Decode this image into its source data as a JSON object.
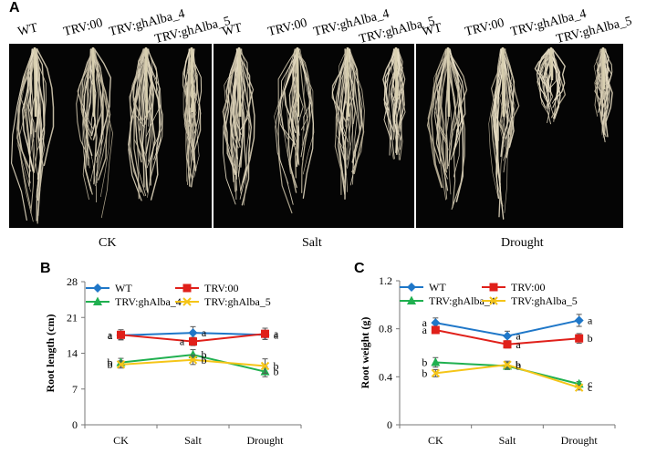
{
  "panel_a": {
    "letter": "A",
    "groups": [
      {
        "condition": "CK",
        "labels": [
          "WT",
          "TRV:00",
          "TRV:ghAlba_4",
          "TRV:ghAlba_5"
        ]
      },
      {
        "condition": "Salt",
        "labels": [
          "WT",
          "TRV:00",
          "TRV:ghAlba_4",
          "TRV:ghAlba_5"
        ]
      },
      {
        "condition": "Drought",
        "labels": [
          "WT",
          "TRV:00",
          "TRV:ghAlba_4",
          "TRV:ghAlba_5"
        ]
      }
    ]
  },
  "colors": {
    "WT": "#1f77c8",
    "TRV00": "#e0201a",
    "ghAlba4": "#20b050",
    "ghAlba5": "#f5c518"
  },
  "chart_data": [
    {
      "letter": "B",
      "type": "line",
      "ylabel": "Root length (cm)",
      "categories": [
        "CK",
        "Salt",
        "Drought"
      ],
      "ylim": [
        0,
        28
      ],
      "yticks": [
        "0",
        "7",
        "14",
        "21",
        "28"
      ],
      "legend": [
        "WT",
        "TRV:00",
        "TRV:ghAlba_4",
        "TRV:ghAlba_5"
      ],
      "series": [
        {
          "name": "WT",
          "marker": "diamond",
          "values": [
            17.5,
            18.0,
            17.6
          ],
          "err": [
            0.8,
            1.2,
            0.9
          ],
          "letters": [
            "a",
            "a",
            "a"
          ]
        },
        {
          "name": "TRV:00",
          "marker": "square",
          "values": [
            17.6,
            16.3,
            17.8
          ],
          "err": [
            1.0,
            0.8,
            1.1
          ],
          "letters": [
            "a",
            "a",
            "a"
          ]
        },
        {
          "name": "TRV:ghAlba_4",
          "marker": "triangle",
          "values": [
            12.2,
            13.7,
            10.4
          ],
          "err": [
            0.8,
            1.0,
            1.0
          ],
          "letters": [
            "b",
            "b",
            "b"
          ]
        },
        {
          "name": "TRV:ghAlba_5",
          "marker": "x",
          "values": [
            11.8,
            12.7,
            11.5
          ],
          "err": [
            0.7,
            0.9,
            1.4
          ],
          "letters": [
            "b",
            "b",
            "b"
          ]
        }
      ]
    },
    {
      "letter": "C",
      "type": "line",
      "ylabel": "Root weight (g)",
      "categories": [
        "CK",
        "Salt",
        "Drought"
      ],
      "ylim": [
        0,
        1.2
      ],
      "yticks": [
        "0",
        "0.4",
        "0.8",
        "1.2"
      ],
      "legend": [
        "WT",
        "TRV:00",
        "TRV:ghAlba_4",
        "TRV:ghAlba_5"
      ],
      "series": [
        {
          "name": "WT",
          "marker": "diamond",
          "values": [
            0.85,
            0.74,
            0.87
          ],
          "err": [
            0.04,
            0.04,
            0.05
          ],
          "letters": [
            "a",
            "a",
            "a"
          ]
        },
        {
          "name": "TRV:00",
          "marker": "square",
          "values": [
            0.79,
            0.67,
            0.72
          ],
          "err": [
            0.03,
            0.03,
            0.04
          ],
          "letters": [
            "a",
            "a",
            "b"
          ]
        },
        {
          "name": "TRV:ghAlba_4",
          "marker": "triangle",
          "values": [
            0.52,
            0.49,
            0.34
          ],
          "err": [
            0.04,
            0.03,
            0.02
          ],
          "letters": [
            "b",
            "b",
            "c"
          ]
        },
        {
          "name": "TRV:ghAlba_5",
          "marker": "x",
          "values": [
            0.43,
            0.5,
            0.31
          ],
          "err": [
            0.03,
            0.03,
            0.02
          ],
          "letters": [
            "b",
            "b",
            "c"
          ]
        }
      ]
    }
  ]
}
